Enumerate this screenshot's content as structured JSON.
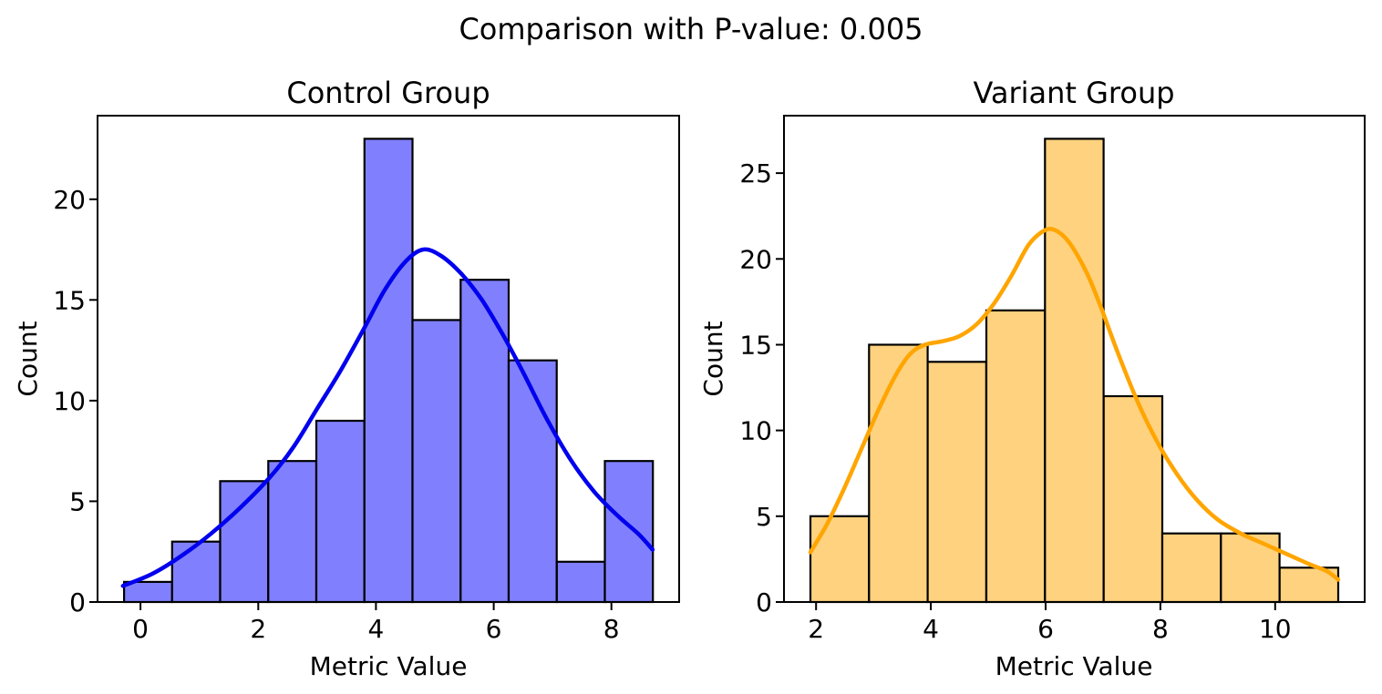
{
  "figure": {
    "suptitle": "Comparison with P-value: 0.005",
    "p_value": "0.005",
    "background_color": "#ffffff",
    "text_color": "#000000"
  },
  "chart_data": [
    {
      "type": "bar",
      "subtype": "histogram_with_kde",
      "title": "Control Group",
      "xlabel": "Metric Value",
      "ylabel": "Count",
      "bin_start": -0.28,
      "bin_width": 0.8168,
      "values": [
        1,
        3,
        6,
        7,
        9,
        23,
        14,
        16,
        12,
        2,
        7
      ],
      "kde_curve": [
        [
          -0.3,
          0.8
        ],
        [
          0.2,
          1.4
        ],
        [
          0.7,
          2.3
        ],
        [
          1.2,
          3.4
        ],
        [
          1.7,
          4.7
        ],
        [
          2.2,
          6.2
        ],
        [
          2.6,
          7.7
        ],
        [
          3.0,
          9.6
        ],
        [
          3.4,
          11.5
        ],
        [
          3.8,
          13.6
        ],
        [
          4.15,
          15.5
        ],
        [
          4.5,
          16.9
        ],
        [
          4.8,
          17.5
        ],
        [
          5.1,
          17.2
        ],
        [
          5.45,
          16.3
        ],
        [
          5.8,
          15.0
        ],
        [
          6.15,
          13.3
        ],
        [
          6.5,
          11.4
        ],
        [
          6.9,
          9.1
        ],
        [
          7.3,
          7.1
        ],
        [
          7.7,
          5.5
        ],
        [
          8.1,
          4.3
        ],
        [
          8.45,
          3.4
        ],
        [
          8.7,
          2.6
        ]
      ],
      "xticks": [
        0,
        2,
        4,
        6,
        8
      ],
      "yticks": [
        0,
        5,
        10,
        15,
        20
      ],
      "xlim": [
        -0.73,
        9.15
      ],
      "ylim": [
        0,
        24.15
      ],
      "grid": false,
      "legend": "none",
      "colors": {
        "bar_fill": "#8080ff",
        "bar_edge": "#000000",
        "kde_line": "#0000ee"
      }
    },
    {
      "type": "bar",
      "subtype": "histogram_with_kde",
      "title": "Variant Group",
      "xlabel": "Metric Value",
      "ylabel": "Count",
      "bin_start": 1.9,
      "bin_width": 1.0222,
      "values": [
        5,
        15,
        14,
        17,
        27,
        12,
        4,
        4,
        2
      ],
      "kde_curve": [
        [
          1.9,
          2.9
        ],
        [
          2.2,
          4.6
        ],
        [
          2.5,
          6.7
        ],
        [
          2.8,
          9.0
        ],
        [
          3.1,
          11.3
        ],
        [
          3.4,
          13.3
        ],
        [
          3.65,
          14.5
        ],
        [
          3.9,
          15.0
        ],
        [
          4.2,
          15.2
        ],
        [
          4.5,
          15.5
        ],
        [
          4.8,
          16.2
        ],
        [
          5.1,
          17.4
        ],
        [
          5.4,
          19.0
        ],
        [
          5.7,
          20.8
        ],
        [
          5.95,
          21.6
        ],
        [
          6.15,
          21.7
        ],
        [
          6.4,
          21.0
        ],
        [
          6.7,
          19.3
        ],
        [
          6.95,
          17.3
        ],
        [
          7.25,
          14.6
        ],
        [
          7.6,
          11.7
        ],
        [
          7.95,
          9.3
        ],
        [
          8.3,
          7.4
        ],
        [
          8.65,
          5.9
        ],
        [
          9.0,
          4.8
        ],
        [
          9.4,
          4.0
        ],
        [
          9.8,
          3.4
        ],
        [
          10.2,
          2.8
        ],
        [
          10.6,
          2.2
        ],
        [
          10.9,
          1.8
        ],
        [
          11.1,
          1.3
        ]
      ],
      "xticks": [
        2,
        4,
        6,
        8,
        10
      ],
      "yticks": [
        0,
        5,
        10,
        15,
        20,
        25
      ],
      "xlim": [
        1.44,
        11.56
      ],
      "ylim": [
        0,
        28.35
      ],
      "grid": false,
      "legend": "none",
      "colors": {
        "bar_fill": "#ffd27f",
        "bar_edge": "#000000",
        "kde_line": "#ffa500"
      }
    }
  ]
}
